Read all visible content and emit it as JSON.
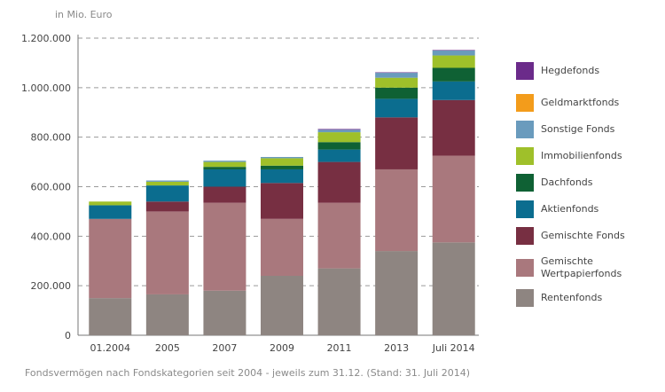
{
  "unit_label": "in Mio. Euro",
  "caption": "Fondsvermögen nach Fondskategorien seit 2004 - jeweils zum 31.12. (Stand: 31. Juli 2014)",
  "chart_data": {
    "type": "bar",
    "stacked": true,
    "categories": [
      "01.2004",
      "2005",
      "2007",
      "2009",
      "2011",
      "2013",
      "Juli 2014"
    ],
    "ylim": [
      0,
      1200000
    ],
    "yticks": [
      "0",
      "200.000",
      "400.000",
      "600.000",
      "800.000",
      "1.000.000",
      "1.200.000"
    ],
    "ytick_values": [
      0,
      200000,
      400000,
      600000,
      800000,
      1000000,
      1200000
    ],
    "grid": true,
    "legend_position": "right",
    "series": [
      {
        "name": "Rentenfonds",
        "color": "#8e8581",
        "values": [
          150000,
          165000,
          180000,
          240000,
          270000,
          340000,
          375000
        ]
      },
      {
        "name": "Gemischte\nWertpapierfonds",
        "color": "#a9787d",
        "values": [
          320000,
          335000,
          355000,
          230000,
          265000,
          330000,
          350000
        ]
      },
      {
        "name": "Gemischte Fonds",
        "color": "#772f42",
        "values": [
          0,
          40000,
          65000,
          145000,
          165000,
          210000,
          225000
        ]
      },
      {
        "name": "Aktienfonds",
        "color": "#0b6d8f",
        "values": [
          55000,
          65000,
          70000,
          55000,
          50000,
          75000,
          75000
        ]
      },
      {
        "name": "Dachfonds",
        "color": "#0f6134",
        "values": [
          0,
          0,
          10000,
          15000,
          30000,
          45000,
          55000
        ]
      },
      {
        "name": "Immobilienfonds",
        "color": "#9fc02a",
        "values": [
          15000,
          15000,
          20000,
          30000,
          40000,
          40000,
          50000
        ]
      },
      {
        "name": "Sonstige Fonds",
        "color": "#6a9bbd",
        "values": [
          0,
          5000,
          5000,
          5000,
          10000,
          20000,
          20000
        ]
      },
      {
        "name": "Geldmarktfonds",
        "color": "#f39c1b",
        "values": [
          0,
          0,
          0,
          0,
          0,
          0,
          0
        ]
      },
      {
        "name": "Hegdefonds",
        "color": "#6b2b8a",
        "values": [
          0,
          0,
          0,
          0,
          3000,
          2000,
          2000
        ]
      }
    ]
  }
}
